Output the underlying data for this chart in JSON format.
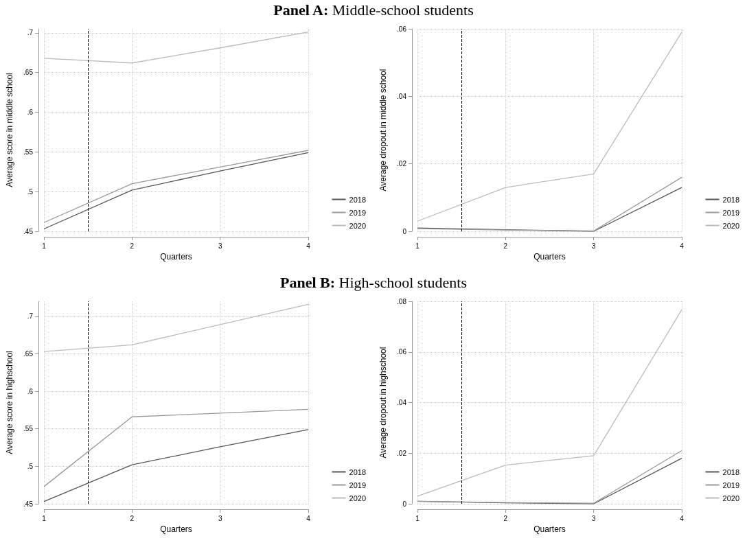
{
  "chart_data": [
    {
      "type": "line",
      "title": "Panel A: Middle-school students",
      "xlabel": "Quarters",
      "ylabel": "Average score in middle school",
      "x": [
        1,
        2,
        3,
        4
      ],
      "xlim": [
        1,
        4
      ],
      "xticks": [
        1,
        2,
        3,
        4
      ],
      "ylim": [
        0.45,
        0.705
      ],
      "yticks": [
        {
          "value": 0.45,
          "label": ".45"
        },
        {
          "value": 0.5,
          "label": ".5"
        },
        {
          "value": 0.55,
          "label": ".55"
        },
        {
          "value": 0.6,
          "label": ".6"
        },
        {
          "value": 0.65,
          "label": ".65"
        },
        {
          "value": 0.7,
          "label": ".7"
        }
      ],
      "grid": true,
      "legend": "bottom right",
      "marker": "none",
      "ref_lines": [
        {
          "axis": "x",
          "value": 1.5,
          "color": "#000000",
          "line_style": "dashed"
        }
      ],
      "series": [
        {
          "name": "2018",
          "color": "#555555",
          "values": [
            0.453,
            0.502,
            0.526,
            0.549
          ]
        },
        {
          "name": "2019",
          "color": "#999999",
          "values": [
            0.461,
            0.51,
            0.531,
            0.552
          ]
        },
        {
          "name": "2020",
          "color": "#bbbbbb",
          "values": [
            0.668,
            0.662,
            0.681,
            0.701
          ]
        }
      ]
    },
    {
      "type": "line",
      "xlabel": "Quarters",
      "ylabel": "Average dropout in middle school",
      "x": [
        1,
        2,
        3,
        4
      ],
      "xlim": [
        1,
        4
      ],
      "xticks": [
        1,
        2,
        3,
        4
      ],
      "ylim": [
        0,
        0.06
      ],
      "yticks": [
        0,
        {
          "value": 0.02,
          "label": ".02"
        },
        {
          "value": 0.04,
          "label": ".04"
        },
        {
          "value": 0.06,
          "label": ".06"
        }
      ],
      "grid": true,
      "legend": "bottom right",
      "marker": "none",
      "ref_lines": [
        {
          "axis": "x",
          "value": 1.5,
          "color": "#000000",
          "line_style": "dashed"
        }
      ],
      "series": [
        {
          "name": "2018",
          "color": "#555555",
          "values": [
            0.001,
            0.0005,
            0,
            0.013
          ]
        },
        {
          "name": "2019",
          "color": "#999999",
          "values": [
            0.0008,
            0.0004,
            0.0001,
            0.016
          ]
        },
        {
          "name": "2020",
          "color": "#bbbbbb",
          "values": [
            0.003,
            0.013,
            0.017,
            0.059
          ]
        }
      ]
    },
    {
      "type": "line",
      "title": "Panel B: High-school students",
      "xlabel": "Quarters",
      "ylabel": "Average score in highschool",
      "x": [
        1,
        2,
        3,
        4
      ],
      "xlim": [
        1,
        4
      ],
      "xticks": [
        1,
        2,
        3,
        4
      ],
      "ylim": [
        0.45,
        0.72
      ],
      "yticks": [
        {
          "value": 0.45,
          "label": ".45"
        },
        {
          "value": 0.5,
          "label": ".5"
        },
        {
          "value": 0.55,
          "label": ".55"
        },
        {
          "value": 0.6,
          "label": ".6"
        },
        {
          "value": 0.65,
          "label": ".65"
        },
        {
          "value": 0.7,
          "label": ".7"
        }
      ],
      "grid": true,
      "legend": "bottom right",
      "marker": "none",
      "ref_lines": [
        {
          "axis": "x",
          "value": 1.5,
          "color": "#000000",
          "line_style": "dashed"
        }
      ],
      "series": [
        {
          "name": "2018",
          "color": "#555555",
          "values": [
            0.453,
            0.502,
            0.526,
            0.549
          ]
        },
        {
          "name": "2019",
          "color": "#999999",
          "values": [
            0.473,
            0.566,
            0.571,
            0.576
          ]
        },
        {
          "name": "2020",
          "color": "#bbbbbb",
          "values": [
            0.653,
            0.662,
            0.689,
            0.716
          ]
        }
      ]
    },
    {
      "type": "line",
      "xlabel": "Quarters",
      "ylabel": "Average dropout in highschool",
      "x": [
        1,
        2,
        3,
        4
      ],
      "xlim": [
        1,
        4
      ],
      "xticks": [
        1,
        2,
        3,
        4
      ],
      "ylim": [
        0,
        0.08
      ],
      "yticks": [
        0,
        {
          "value": 0.02,
          "label": ".02"
        },
        {
          "value": 0.04,
          "label": ".04"
        },
        {
          "value": 0.06,
          "label": ".06"
        },
        {
          "value": 0.08,
          "label": ".08"
        }
      ],
      "grid": true,
      "legend": "bottom right",
      "marker": "none",
      "ref_lines": [
        {
          "axis": "x",
          "value": 1.5,
          "color": "#000000",
          "line_style": "dashed"
        }
      ],
      "series": [
        {
          "name": "2018",
          "color": "#555555",
          "values": [
            0.001,
            0.0004,
            0,
            0.018
          ]
        },
        {
          "name": "2019",
          "color": "#999999",
          "values": [
            0.001,
            0.0005,
            0.0002,
            0.021
          ]
        },
        {
          "name": "2020",
          "color": "#bbbbbb",
          "values": [
            0.003,
            0.0153,
            0.019,
            0.0767
          ]
        }
      ]
    }
  ]
}
